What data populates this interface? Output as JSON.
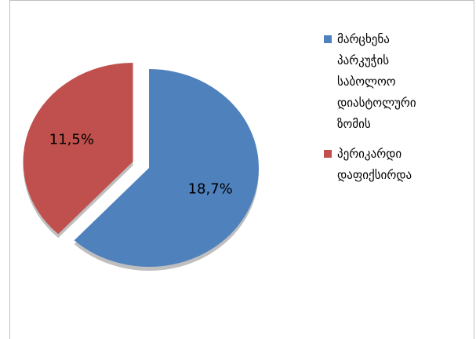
{
  "chart_data": {
    "type": "pie",
    "categories": [
      "მარცხენა პარკუჭის საბოლოო დიასტოლური ზომის",
      "პერიკარდი დაფიქსირდა"
    ],
    "values": [
      18.7,
      11.5
    ],
    "value_labels": [
      "18,7%",
      "11,5%"
    ],
    "colors": [
      "#4f81bd",
      "#c0504d"
    ],
    "exploded": [
      false,
      true
    ],
    "legend": "right"
  }
}
